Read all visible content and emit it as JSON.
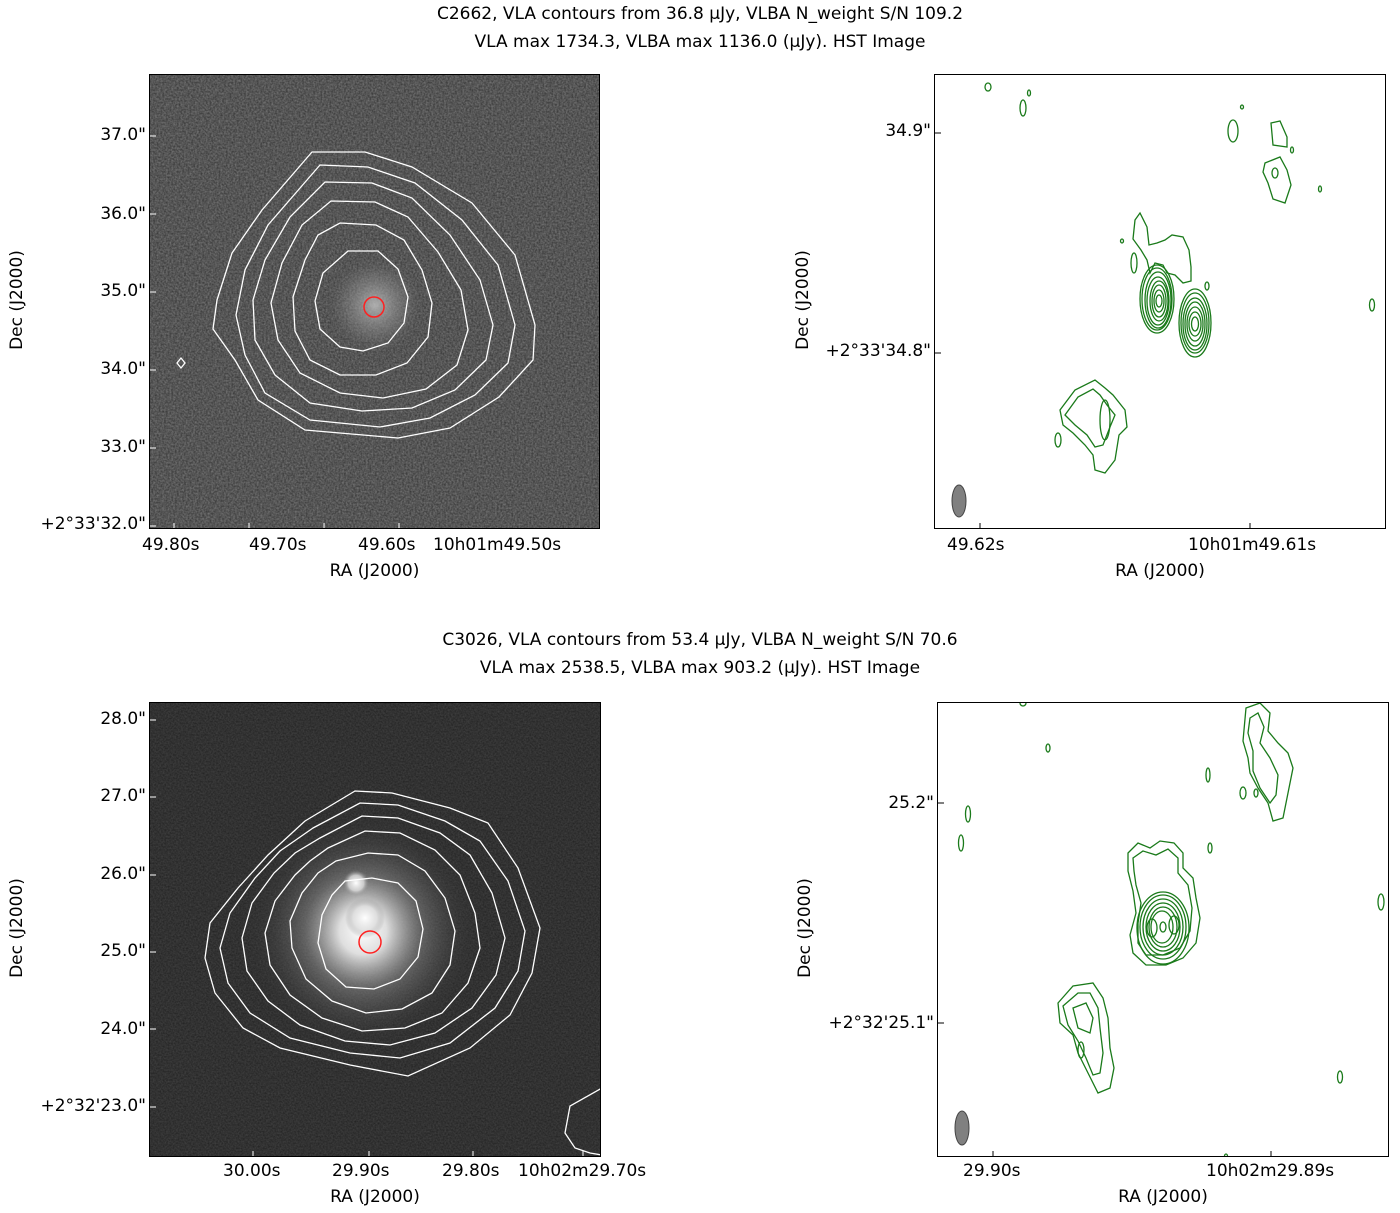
{
  "figures": [
    {
      "title_line1": "C2662, VLA contours from 36.8 μJy, VLBA N_weight S/N 109.2",
      "title_line2": "VLA max 1734.3, VLBA max 1136.0 (μJy). HST Image",
      "left": {
        "y_ticks": [
          "37.0\"",
          "36.0\"",
          "35.0\"",
          "34.0\"",
          "33.0\"",
          "+2°33'32.0\""
        ],
        "x_ticks": [
          "49.80s",
          "49.70s",
          "49.60s",
          "10h01m49.50s"
        ],
        "xlabel": "RA (J2000)",
        "ylabel": "Dec (J2000)"
      },
      "right": {
        "y_ticks": [
          "34.9\"",
          "+2°33'34.8\""
        ],
        "x_ticks": [
          "49.62s",
          "10h01m49.61s"
        ],
        "xlabel": "RA (J2000)",
        "ylabel": "Dec (J2000)"
      }
    },
    {
      "title_line1": "C3026, VLA contours from 53.4 μJy, VLBA N_weight S/N 70.6",
      "title_line2": "VLA max 2538.5, VLBA max 903.2 (μJy). HST Image",
      "left": {
        "y_ticks": [
          "28.0\"",
          "27.0\"",
          "26.0\"",
          "25.0\"",
          "24.0\"",
          "+2°32'23.0\""
        ],
        "x_ticks": [
          "30.00s",
          "29.90s",
          "29.80s",
          "10h02m29.70s"
        ],
        "xlabel": "RA (J2000)",
        "ylabel": "Dec (J2000)"
      },
      "right": {
        "y_ticks": [
          "25.2\"",
          "+2°32'25.1\""
        ],
        "x_ticks": [
          "29.90s",
          "10h02m29.89s"
        ],
        "xlabel": "RA (J2000)",
        "ylabel": "Dec (J2000)"
      }
    }
  ],
  "colors": {
    "vla_contour": "#ffffff",
    "vlba_contour": "#1a7a1a",
    "marker": "#ff2020",
    "beam": "#808080"
  }
}
